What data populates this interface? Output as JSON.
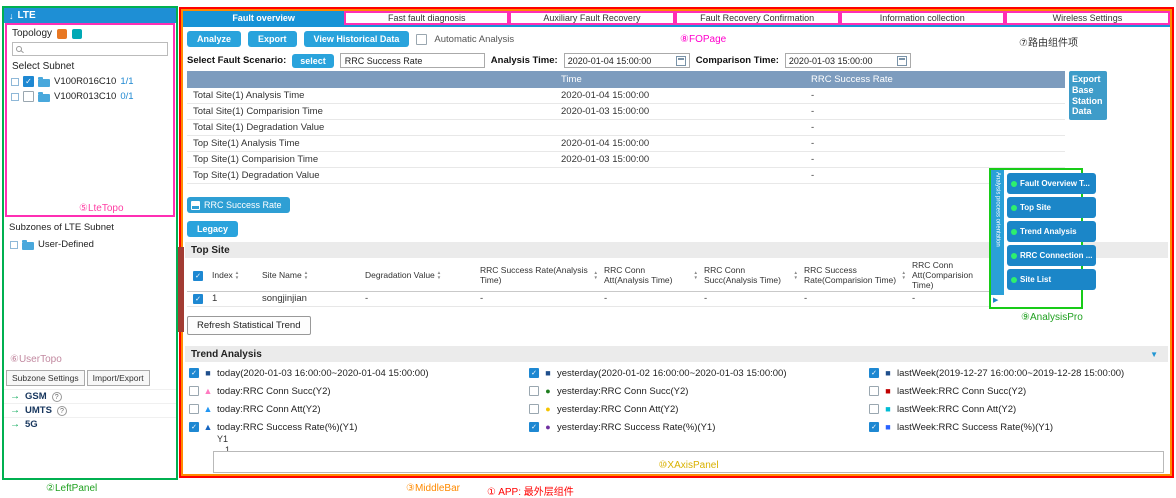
{
  "annotations": {
    "app": "① APP: 最外层组件",
    "left_panel": "②LeftPanel",
    "middle_bar": "③MiddleBar",
    "lte_topo": "⑤LteTopo",
    "user_topo": "⑥UserTopo",
    "route_item": "⑦路由组件项",
    "fo_page": "⑧FOPage",
    "analysis_pro": "⑨AnalysisPro",
    "xaxis_panel": "⑩XAxisPanel"
  },
  "left_panel": {
    "header_title": "LTE",
    "topology_label": "Topology",
    "search_placeholder": "",
    "select_subnet_label": "Select Subnet",
    "subnets": [
      {
        "name": "V100R016C10",
        "count": "1/1",
        "checked": true
      },
      {
        "name": "V100R013C10",
        "count": "0/1",
        "checked": false
      }
    ],
    "subzones_label": "Subzones of LTE Subnet",
    "user_defined_label": "User-Defined",
    "bottom_tabs": [
      {
        "label": "Subzone Settings"
      },
      {
        "label": "Import/Export"
      }
    ],
    "networks": [
      {
        "label": "GSM",
        "help": "?"
      },
      {
        "label": "UMTS",
        "help": "?"
      },
      {
        "label": "5G",
        "help": ""
      }
    ]
  },
  "tabs": [
    {
      "label": "Fault overview",
      "active": true
    },
    {
      "label": "Fast fault diagnosis",
      "active": false
    },
    {
      "label": "Auxiliary Fault Recovery",
      "active": false
    },
    {
      "label": "Fault Recovery Confirmation",
      "active": false
    },
    {
      "label": "Information collection",
      "active": false
    },
    {
      "label": "Wireless Settings",
      "active": false
    }
  ],
  "toolbar": {
    "analyze": "Analyze",
    "export": "Export",
    "view_historical": "View Historical Data",
    "automatic_analysis": "Automatic Analysis",
    "automatic_checked": false
  },
  "scenario": {
    "label": "Select Fault Scenario:",
    "select_button": "select",
    "scenario_value": "RRC Success Rate",
    "analysis_time_label": "Analysis Time:",
    "analysis_time": "2020-01-04 15:00:00",
    "comparison_time_label": "Comparison Time:",
    "comparison_time": "2020-01-03 15:00:00"
  },
  "summary_table": {
    "col_time": "Time",
    "col_rrc": "RRC Success Rate",
    "rows": [
      {
        "label": "Total Site(1) Analysis Time",
        "time": "2020-01-04 15:00:00",
        "rrc": "-"
      },
      {
        "label": "Total Site(1) Comparision Time",
        "time": "2020-01-03 15:00:00",
        "rrc": "-"
      },
      {
        "label": "Total Site(1) Degradation Value",
        "time": "",
        "rrc": "-"
      },
      {
        "label": "Top Site(1) Analysis Time",
        "time": "2020-01-04 15:00:00",
        "rrc": "-"
      },
      {
        "label": "Top Site(1) Comparision Time",
        "time": "2020-01-03 15:00:00",
        "rrc": "-"
      },
      {
        "label": "Top Site(1) Degradation Value",
        "time": "",
        "rrc": "-"
      }
    ]
  },
  "export_box_label": "Export Base Station Data",
  "rrc_tag_label": "RRC Success Rate",
  "legacy_label": "Legacy",
  "top_site": {
    "title": "Top Site",
    "columns": [
      {
        "label": "Index"
      },
      {
        "label": "Site Name"
      },
      {
        "label": "Degradation Value"
      },
      {
        "label": "RRC Success Rate(Analysis Time)"
      },
      {
        "label": "RRC Conn Att(Analysis Time)"
      },
      {
        "label": "RRC Conn Succ(Analysis Time)"
      },
      {
        "label": "RRC Success Rate(Comparision Time)"
      },
      {
        "label": "RRC Conn Att(Comparision Time)"
      }
    ],
    "row": {
      "checked": true,
      "cells": [
        "1",
        "songjinjian",
        "-",
        "-",
        "-",
        "-",
        "-",
        "-"
      ]
    }
  },
  "refresh_button_label": "Refresh Statistical Trend",
  "trend": {
    "title": "Trend Analysis",
    "y1_label": "Y1",
    "y1_tick": "1",
    "legend": [
      {
        "checked": true,
        "marker": "■",
        "color": "#1f4e8c",
        "label": "today(2020-01-03 16:00:00~2020-01-04 15:00:00)"
      },
      {
        "checked": true,
        "marker": "■",
        "color": "#1f4e8c",
        "label": "yesterday(2020-01-02 16:00:00~2020-01-03 15:00:00)"
      },
      {
        "checked": true,
        "marker": "■",
        "color": "#1f4e8c",
        "label": "lastWeek(2019-12-27 16:00:00~2019-12-28 15:00:00)"
      },
      {
        "checked": false,
        "marker": "▲",
        "color": "#ff7bc1",
        "label": "today:RRC Conn Succ(Y2)"
      },
      {
        "checked": false,
        "marker": "●",
        "color": "#1e7d1e",
        "label": "yesterday:RRC Conn Succ(Y2)"
      },
      {
        "checked": false,
        "marker": "■",
        "color": "#c00000",
        "label": "lastWeek:RRC Conn Succ(Y2)"
      },
      {
        "checked": false,
        "marker": "▲",
        "color": "#2196f3",
        "label": "today:RRC Conn Att(Y2)"
      },
      {
        "checked": false,
        "marker": "●",
        "color": "#f5c400",
        "label": "yesterday:RRC Conn Att(Y2)"
      },
      {
        "checked": false,
        "marker": "■",
        "color": "#00bcd4",
        "label": "lastWeek:RRC Conn Att(Y2)"
      },
      {
        "checked": true,
        "marker": "▲",
        "color": "#1565c0",
        "label": "today:RRC Success Rate(%)(Y1)"
      },
      {
        "checked": true,
        "marker": "●",
        "color": "#7030a0",
        "label": "yesterday:RRC Success Rate(%)(Y1)"
      },
      {
        "checked": true,
        "marker": "■",
        "color": "#2962ff",
        "label": "lastWeek:RRC Success Rate(%)(Y1)"
      }
    ]
  },
  "analysis_panel": {
    "strip_label": "Analysis process orientation",
    "items": [
      {
        "label": "Fault Overview T..."
      },
      {
        "label": "Top Site"
      },
      {
        "label": "Trend Analysis"
      },
      {
        "label": "RRC Connection ..."
      },
      {
        "label": "Site List"
      }
    ]
  },
  "colors": {
    "accent_blue": "#1793d6",
    "table_header_blue": "#7d9cbe",
    "annotation_red": "#ff0000",
    "annotation_orange": "#ff8a00",
    "annotation_green": "#21a121",
    "annotation_pink": "#ff00cc",
    "annotation_yellow": "#d9b100"
  }
}
